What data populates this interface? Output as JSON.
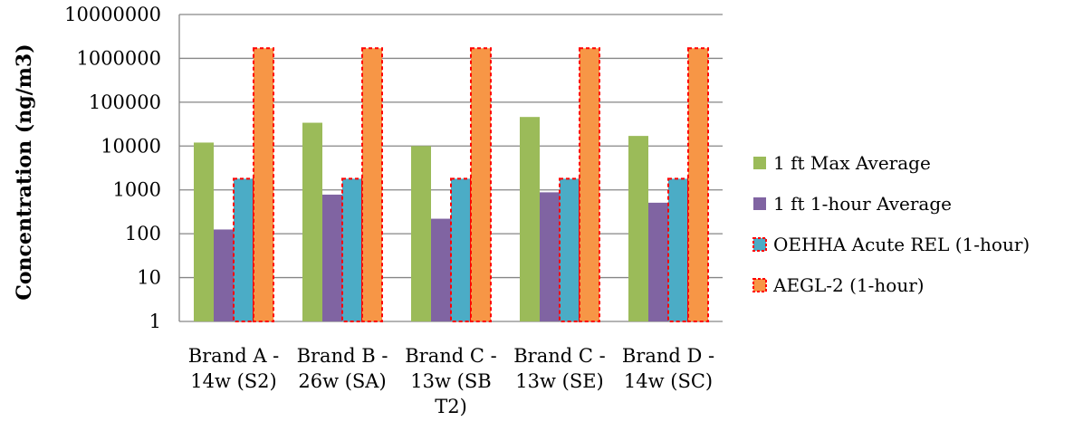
{
  "chart_data": {
    "type": "bar",
    "title": "",
    "xlabel": "",
    "ylabel": "Concentration (ng/m3)",
    "yscale": "log",
    "ylim": [
      1,
      10000000
    ],
    "yticks": [
      "1",
      "10",
      "100",
      "1000",
      "10000",
      "100000",
      "1000000",
      "10000000"
    ],
    "categories": [
      [
        "Brand A -",
        "14w (S2)"
      ],
      [
        "Brand B -",
        "26w (SA)"
      ],
      [
        "Brand C -",
        "13w (SB",
        "T2)"
      ],
      [
        "Brand C -",
        "13w (SE)"
      ],
      [
        "Brand D -",
        "14w (SC)"
      ]
    ],
    "grid": true,
    "legend_position": "right",
    "series": [
      {
        "name": "1 ft Max Average",
        "color": "#9bbb59",
        "dashed_border": false,
        "values": [
          12000,
          34000,
          10000,
          46000,
          17000
        ]
      },
      {
        "name": "1 ft 1-hour Average",
        "color": "#8064a2",
        "dashed_border": false,
        "values": [
          125,
          780,
          220,
          880,
          510
        ]
      },
      {
        "name": "OEHHA Acute REL (1-hour)",
        "color": "#4bacc6",
        "dashed_border": true,
        "values": [
          1800,
          1800,
          1800,
          1800,
          1800
        ]
      },
      {
        "name": "AEGL-2 (1-hour)",
        "color": "#f79646",
        "dashed_border": true,
        "values": [
          1700000,
          1700000,
          1700000,
          1700000,
          1700000
        ]
      }
    ],
    "border_color": "#ff0000"
  }
}
